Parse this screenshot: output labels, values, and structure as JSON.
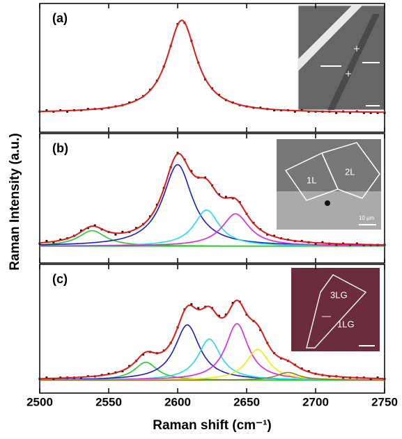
{
  "chart_data": [
    {
      "type": "line",
      "label": "(a)",
      "x": [
        2500,
        2505,
        2510,
        2515,
        2520,
        2525,
        2530,
        2535,
        2540,
        2545,
        2550,
        2555,
        2560,
        2565,
        2570,
        2575,
        2580,
        2585,
        2590,
        2595,
        2600,
        2605,
        2610,
        2615,
        2620,
        2625,
        2630,
        2635,
        2640,
        2645,
        2650,
        2655,
        2660,
        2665,
        2670,
        2675,
        2680,
        2685,
        2690,
        2695,
        2700,
        2705,
        2710,
        2715,
        2720,
        2725,
        2730,
        2735,
        2740,
        2745,
        2750
      ],
      "data": {
        "color": "#000000",
        "values": [
          0.16,
          0.17,
          0.16,
          0.17,
          0.16,
          0.17,
          0.17,
          0.18,
          0.18,
          0.18,
          0.19,
          0.2,
          0.21,
          0.23,
          0.25,
          0.28,
          0.33,
          0.4,
          0.51,
          0.67,
          0.84,
          0.85,
          0.71,
          0.54,
          0.41,
          0.34,
          0.29,
          0.25,
          0.23,
          0.21,
          0.2,
          0.19,
          0.19,
          0.18,
          0.17,
          0.17,
          0.17,
          0.16,
          0.17,
          0.16,
          0.16,
          0.16,
          0.16,
          0.15,
          0.16,
          0.15,
          0.16,
          0.15,
          0.15,
          0.15,
          0.15
        ]
      },
      "fit_color": "#e01818",
      "baseline": 0.15,
      "peaks": [
        {
          "center": 2603,
          "height": 0.72,
          "width": 13
        }
      ],
      "xlim": [
        2500,
        2750
      ],
      "xticks": [
        2500,
        2550,
        2600,
        2650,
        2700,
        2750
      ],
      "ylim": [
        0,
        1
      ]
    },
    {
      "type": "line",
      "label": "(b)",
      "ylabel": "Raman Intensity (a.u.)",
      "x": [
        2500,
        2505,
        2510,
        2515,
        2520,
        2525,
        2530,
        2535,
        2540,
        2545,
        2550,
        2555,
        2560,
        2565,
        2570,
        2575,
        2580,
        2585,
        2590,
        2595,
        2600,
        2605,
        2610,
        2615,
        2620,
        2625,
        2630,
        2635,
        2640,
        2645,
        2650,
        2655,
        2660,
        2665,
        2670,
        2675,
        2680,
        2685,
        2690,
        2695,
        2700,
        2705,
        2710,
        2715,
        2720,
        2725,
        2730,
        2735,
        2740,
        2745,
        2750
      ],
      "data": {
        "color": "#000000",
        "values": [
          0.15,
          0.17,
          0.16,
          0.18,
          0.19,
          0.21,
          0.25,
          0.27,
          0.29,
          0.26,
          0.24,
          0.22,
          0.24,
          0.24,
          0.27,
          0.3,
          0.36,
          0.45,
          0.58,
          0.74,
          0.85,
          0.8,
          0.71,
          0.66,
          0.66,
          0.6,
          0.53,
          0.51,
          0.5,
          0.47,
          0.38,
          0.31,
          0.26,
          0.22,
          0.21,
          0.19,
          0.18,
          0.17,
          0.17,
          0.16,
          0.15,
          0.16,
          0.15,
          0.14,
          0.15,
          0.14,
          0.15,
          0.14,
          0.14,
          0.14,
          0.14
        ]
      },
      "fit_color": "#e01818",
      "baseline": 0.13,
      "baseline_color": "#22cc22",
      "peaks": [
        {
          "center": 2538,
          "height": 0.12,
          "width": 12,
          "color": "#22cc22"
        },
        {
          "center": 2600,
          "height": 0.63,
          "width": 13,
          "color": "#1a1acc"
        },
        {
          "center": 2621,
          "height": 0.28,
          "width": 11,
          "color": "#22dddd"
        },
        {
          "center": 2642,
          "height": 0.25,
          "width": 12,
          "color": "#dd22dd"
        }
      ],
      "inset_labels": [
        "1L",
        "2L",
        "10 μm"
      ],
      "xlim": [
        2500,
        2750
      ],
      "xticks": [
        2500,
        2550,
        2600,
        2650,
        2700,
        2750
      ],
      "ylim": [
        0,
        1
      ]
    },
    {
      "type": "line",
      "label": "(c)",
      "xlabel": "Raman shift (cm⁻¹)",
      "x": [
        2500,
        2505,
        2510,
        2515,
        2520,
        2525,
        2530,
        2535,
        2540,
        2545,
        2550,
        2555,
        2560,
        2565,
        2570,
        2575,
        2580,
        2585,
        2590,
        2595,
        2600,
        2605,
        2610,
        2615,
        2620,
        2625,
        2630,
        2635,
        2640,
        2645,
        2650,
        2655,
        2660,
        2665,
        2670,
        2675,
        2680,
        2685,
        2690,
        2695,
        2700,
        2705,
        2710,
        2715,
        2720,
        2725,
        2730,
        2735,
        2740,
        2745,
        2750
      ],
      "data": {
        "color": "#000000",
        "values": [
          0.11,
          0.12,
          0.11,
          0.12,
          0.12,
          0.12,
          0.12,
          0.13,
          0.13,
          0.14,
          0.15,
          0.16,
          0.17,
          0.21,
          0.25,
          0.3,
          0.32,
          0.31,
          0.33,
          0.39,
          0.51,
          0.65,
          0.69,
          0.66,
          0.67,
          0.66,
          0.6,
          0.61,
          0.7,
          0.71,
          0.61,
          0.56,
          0.49,
          0.39,
          0.31,
          0.27,
          0.25,
          0.22,
          0.19,
          0.17,
          0.15,
          0.14,
          0.13,
          0.13,
          0.12,
          0.12,
          0.12,
          0.12,
          0.11,
          0.12,
          0.11
        ]
      },
      "fit_color": "#e01818",
      "baseline": 0.1,
      "baseline_color": "#9a8a4a",
      "peaks": [
        {
          "center": 2577,
          "height": 0.14,
          "width": 10,
          "color": "#22cc22"
        },
        {
          "center": 2607,
          "height": 0.43,
          "width": 11,
          "color": "#1a1acc"
        },
        {
          "center": 2623,
          "height": 0.32,
          "width": 10,
          "color": "#22dddd"
        },
        {
          "center": 2643,
          "height": 0.44,
          "width": 10,
          "color": "#dd22dd"
        },
        {
          "center": 2658,
          "height": 0.24,
          "width": 10,
          "color": "#eeee00"
        },
        {
          "center": 2680,
          "height": 0.06,
          "width": 10,
          "color": "#8b7d2b"
        }
      ],
      "inset_labels": [
        "3LG",
        "1LG"
      ],
      "xlim": [
        2500,
        2750
      ],
      "xticks": [
        2500,
        2550,
        2600,
        2650,
        2700,
        2750
      ],
      "ylim": [
        0,
        1
      ]
    }
  ]
}
